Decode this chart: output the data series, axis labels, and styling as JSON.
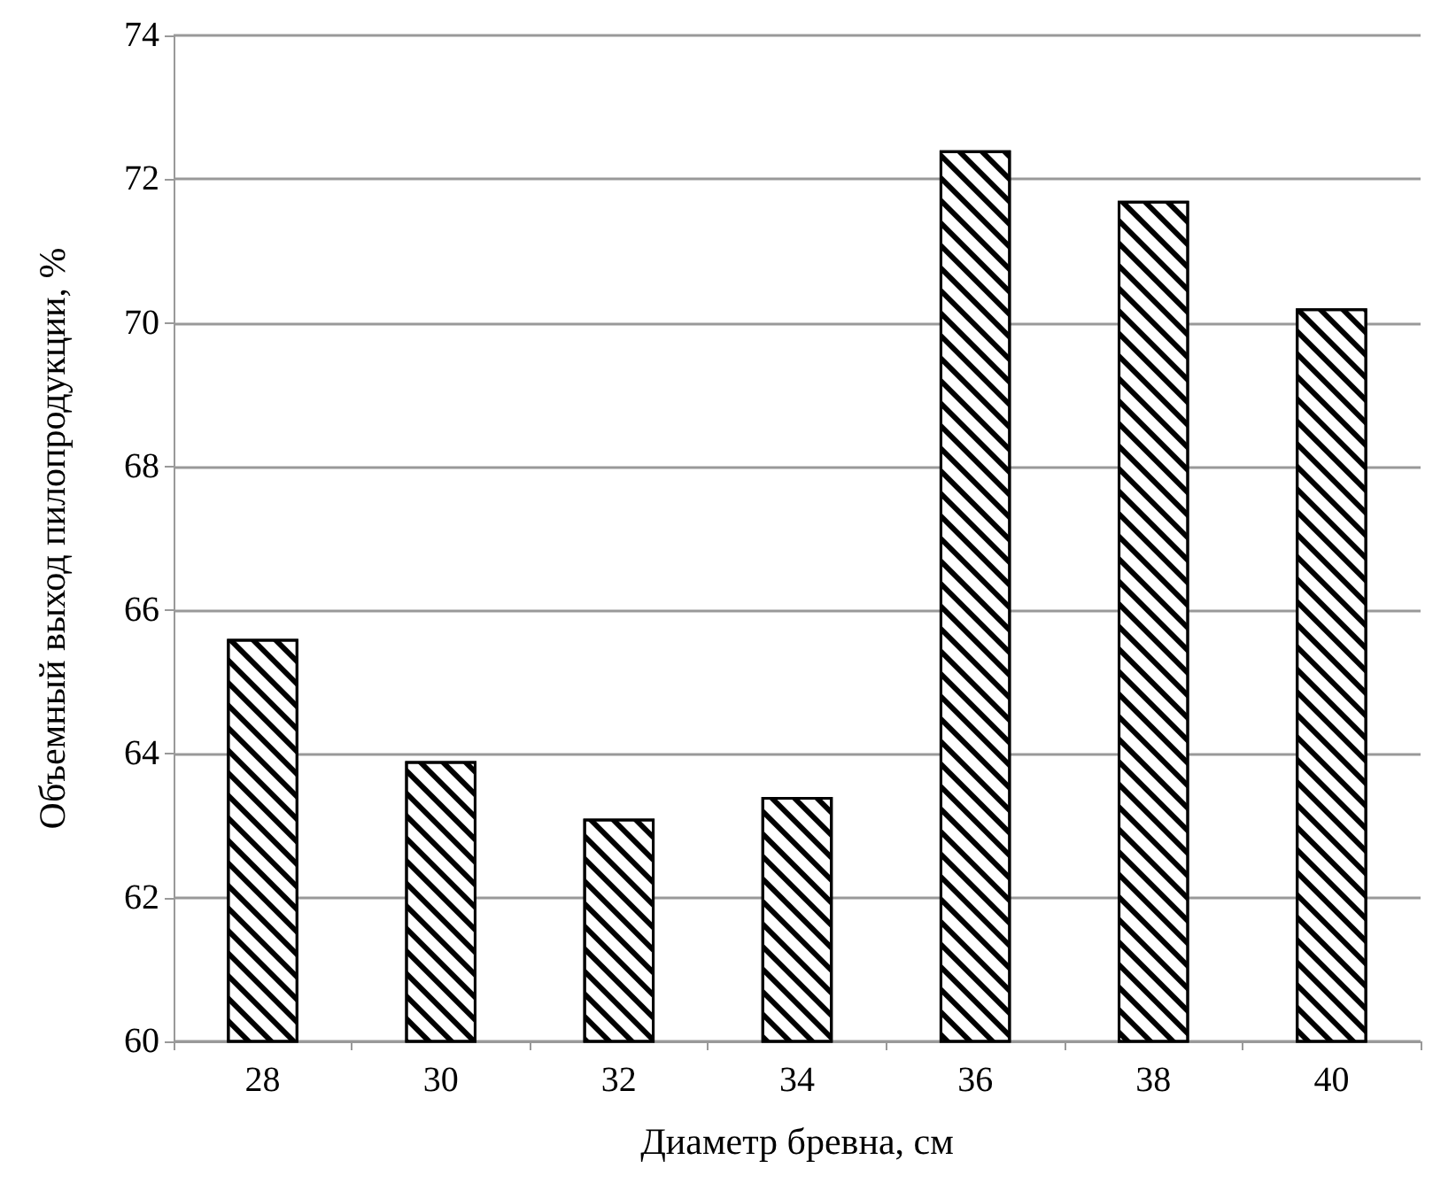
{
  "chart_data": {
    "type": "bar",
    "xlabel": "Диаметр бревна, см",
    "ylabel": "Объемный выход пилопродукции, %",
    "categories": [
      "28",
      "30",
      "32",
      "34",
      "36",
      "38",
      "40"
    ],
    "values": [
      65.6,
      63.9,
      63.1,
      63.4,
      72.4,
      71.7,
      70.2
    ],
    "color": "#ffffff",
    "ylim": [
      60,
      74
    ],
    "yticks": [
      60,
      62,
      64,
      66,
      68,
      70,
      72,
      74
    ],
    "grid": "y"
  }
}
